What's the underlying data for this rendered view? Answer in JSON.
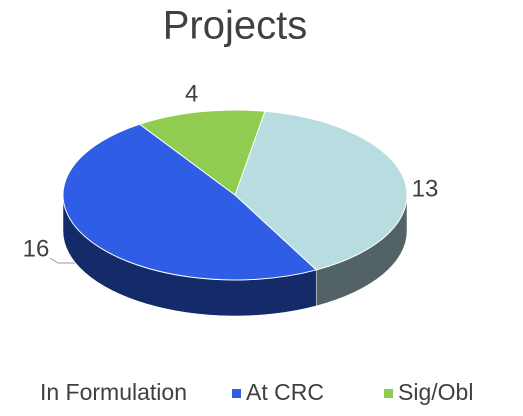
{
  "chart_data": {
    "type": "pie",
    "title": "Projects",
    "categories": [
      "In Formulation",
      "At CRC",
      "Sig/Obl"
    ],
    "values": [
      13,
      16,
      4
    ],
    "colors": [
      "#b8dde0",
      "#2f5de6",
      "#8fcc4f"
    ],
    "legend": "bottom"
  }
}
